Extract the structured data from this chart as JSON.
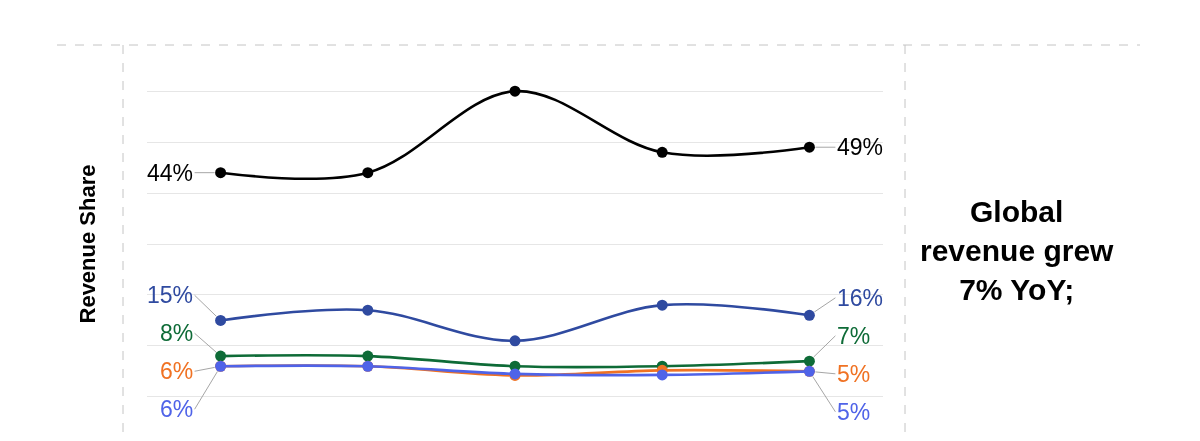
{
  "chart_data": {
    "type": "line",
    "ylabel": "Revenue Share",
    "categories": [
      null,
      null,
      null,
      null,
      null
    ],
    "series": [
      {
        "color": "#000000",
        "values": [
          44,
          44,
          60,
          48,
          49
        ],
        "value_labels": [
          "44%",
          null,
          null,
          null,
          "49%"
        ]
      },
      {
        "color": "#2f4aa0",
        "values": [
          15,
          17,
          11,
          18,
          16
        ],
        "value_labels": [
          "15%",
          null,
          null,
          null,
          "16%"
        ]
      },
      {
        "color": "#0e6b37",
        "values": [
          8,
          8,
          6,
          6,
          7
        ],
        "value_labels": [
          "8%",
          null,
          null,
          null,
          "7%"
        ]
      },
      {
        "color": "#f07223",
        "values": [
          6,
          6,
          4.2,
          5.2,
          5
        ],
        "value_labels": [
          "6%",
          null,
          null,
          null,
          "5%"
        ]
      },
      {
        "color": "#4f63e8",
        "values": [
          6,
          6,
          4.5,
          4.3,
          5
        ],
        "value_labels": [
          "6%",
          null,
          null,
          null,
          "5%"
        ]
      }
    ],
    "tick_labels": false,
    "grid": "y",
    "marker": "circle",
    "line_style": "solid",
    "annotations": [
      "Global revenue grew 7% YoY;"
    ]
  }
}
